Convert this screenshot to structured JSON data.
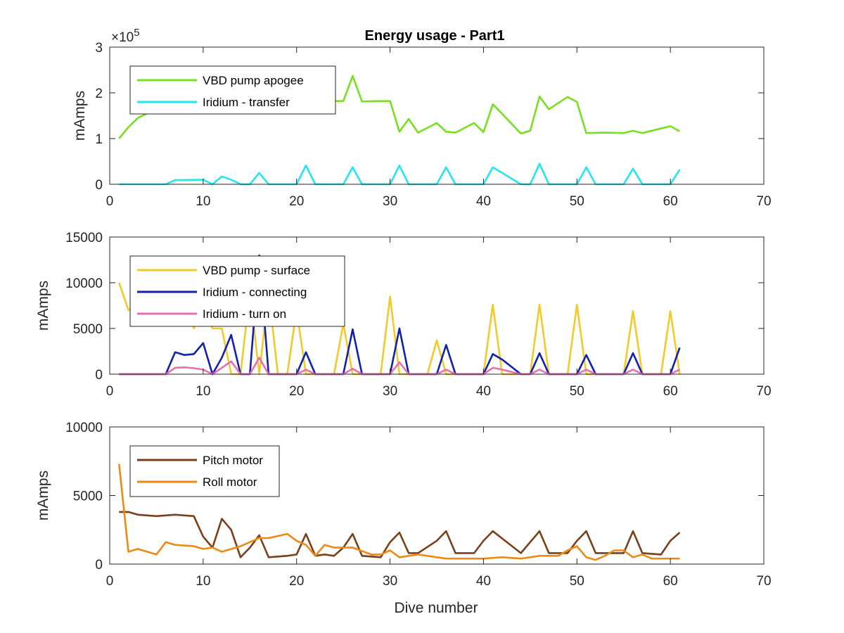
{
  "figure": {
    "title": "Energy usage - Part1",
    "xlabel": "Dive number"
  },
  "chart_data": [
    {
      "type": "line",
      "ylabel": "mAmps",
      "xlim": [
        0,
        70
      ],
      "ylim": [
        0,
        300000
      ],
      "xticks": [
        "0",
        "10",
        "20",
        "30",
        "40",
        "50",
        "60",
        "70"
      ],
      "yticks": [
        "0",
        "1",
        "2",
        "3"
      ],
      "ytick_values": [
        0,
        100000,
        200000,
        300000
      ],
      "exponent_label": "×10",
      "exponent_power": "5",
      "legend_position": "top-left",
      "series": [
        {
          "name": "VBD pump apogee",
          "color": "#77e020",
          "x": [
            1,
            2,
            3,
            5,
            7,
            9,
            11,
            13,
            15,
            17,
            19,
            21,
            23,
            25,
            26,
            27,
            29,
            30,
            31,
            32,
            33,
            35,
            36,
            37,
            39,
            40,
            41,
            42,
            44,
            45,
            46,
            47,
            49,
            50,
            51,
            53,
            55,
            56,
            57,
            59,
            60,
            61
          ],
          "y": [
            100000,
            125000,
            145000,
            165000,
            175000,
            180000,
            180000,
            182000,
            184000,
            183000,
            182000,
            183000,
            182000,
            182000,
            237000,
            181000,
            182000,
            182000,
            115000,
            143000,
            113000,
            134000,
            115000,
            113000,
            134000,
            114000,
            175000,
            154000,
            111000,
            117000,
            192000,
            164000,
            191000,
            180000,
            112000,
            113000,
            112000,
            117000,
            112000,
            122000,
            127000,
            116000
          ]
        },
        {
          "name": "Iridium - transfer",
          "color": "#22e6f0",
          "x": [
            1,
            6,
            7,
            10,
            11,
            12,
            13,
            14,
            15,
            16,
            17,
            20,
            21,
            22,
            25,
            26,
            27,
            30,
            31,
            32,
            35,
            36,
            37,
            40,
            41,
            42,
            44,
            45,
            46,
            47,
            50,
            51,
            52,
            55,
            56,
            57,
            60,
            61
          ],
          "y": [
            0,
            0,
            9000,
            10000,
            0,
            17000,
            10000,
            0,
            0,
            25000,
            0,
            0,
            41000,
            0,
            0,
            37000,
            0,
            0,
            41000,
            0,
            0,
            37000,
            0,
            0,
            37000,
            25000,
            0,
            0,
            45000,
            0,
            0,
            37000,
            0,
            0,
            34000,
            0,
            0,
            32000
          ]
        }
      ]
    },
    {
      "type": "line",
      "ylabel": "mAmps",
      "xlim": [
        0,
        70
      ],
      "ylim": [
        0,
        15000
      ],
      "xticks": [
        "0",
        "10",
        "20",
        "30",
        "40",
        "50",
        "60",
        "70"
      ],
      "yticks": [
        "0",
        "5000",
        "10000",
        "15000"
      ],
      "ytick_values": [
        0,
        5000,
        10000,
        15000
      ],
      "legend_position": "top-left",
      "series": [
        {
          "name": "VBD pump - surface",
          "color": "#f3ca2a",
          "x": [
            1,
            2,
            3,
            4,
            5,
            6,
            7,
            8,
            9,
            10,
            11,
            12,
            13,
            14,
            15,
            16,
            17,
            18,
            19,
            20,
            21,
            22,
            23,
            24,
            25,
            26,
            27,
            28,
            29,
            30,
            31,
            32,
            33,
            34,
            35,
            36,
            37,
            38,
            39,
            40,
            41,
            42,
            43,
            44,
            45,
            46,
            47,
            48,
            49,
            50,
            51,
            52,
            53,
            54,
            55,
            56,
            57,
            58,
            59,
            60,
            61
          ],
          "y": [
            10000,
            7000,
            7500,
            9000,
            8500,
            9000,
            9500,
            9000,
            5000,
            8000,
            5000,
            5000,
            0,
            0,
            9000,
            0,
            9000,
            0,
            0,
            7000,
            0,
            0,
            0,
            0,
            5500,
            0,
            0,
            0,
            0,
            8500,
            0,
            0,
            0,
            0,
            3700,
            0,
            0,
            0,
            0,
            0,
            7600,
            0,
            0,
            0,
            0,
            7600,
            0,
            0,
            0,
            7600,
            0,
            0,
            0,
            0,
            0,
            6900,
            0,
            0,
            0,
            6900,
            0
          ]
        },
        {
          "name": "Iridium - connecting",
          "color": "#1020b0",
          "x": [
            1,
            6,
            7,
            8,
            9,
            10,
            11,
            12,
            13,
            14,
            15,
            16,
            17,
            20,
            21,
            22,
            25,
            26,
            27,
            30,
            31,
            32,
            35,
            36,
            37,
            40,
            41,
            42,
            44,
            45,
            46,
            47,
            50,
            51,
            52,
            55,
            56,
            57,
            60,
            61
          ],
          "y": [
            0,
            0,
            2400,
            2100,
            2200,
            3400,
            0,
            1800,
            4300,
            0,
            0,
            13000,
            0,
            0,
            2400,
            0,
            0,
            4900,
            0,
            0,
            5000,
            0,
            0,
            3200,
            0,
            0,
            2200,
            1600,
            0,
            0,
            2300,
            0,
            0,
            2100,
            0,
            0,
            2300,
            0,
            0,
            2900
          ]
        },
        {
          "name": "Iridium - turn on",
          "color": "#e86fb0",
          "x": [
            1,
            6,
            7,
            8,
            9,
            10,
            11,
            12,
            13,
            14,
            15,
            16,
            17,
            20,
            21,
            22,
            25,
            26,
            27,
            30,
            31,
            32,
            35,
            36,
            37,
            40,
            41,
            42,
            44,
            45,
            46,
            47,
            50,
            51,
            52,
            55,
            56,
            57,
            60,
            61
          ],
          "y": [
            0,
            0,
            700,
            750,
            650,
            500,
            0,
            700,
            1400,
            0,
            0,
            1800,
            0,
            0,
            500,
            0,
            0,
            600,
            0,
            0,
            1300,
            0,
            0,
            500,
            0,
            0,
            700,
            500,
            0,
            0,
            500,
            0,
            0,
            500,
            0,
            0,
            500,
            0,
            0,
            500
          ]
        }
      ]
    },
    {
      "type": "line",
      "ylabel": "mAmps",
      "xlim": [
        0,
        70
      ],
      "ylim": [
        0,
        10000
      ],
      "xticks": [
        "0",
        "10",
        "20",
        "30",
        "40",
        "50",
        "60",
        "70"
      ],
      "yticks": [
        "0",
        "5000",
        "10000"
      ],
      "ytick_values": [
        0,
        5000,
        10000
      ],
      "legend_position": "top-left",
      "series": [
        {
          "name": "Pitch motor",
          "color": "#7a4019",
          "x": [
            1,
            2,
            3,
            5,
            7,
            9,
            10,
            11,
            12,
            13,
            14,
            15,
            16,
            17,
            19,
            20,
            21,
            22,
            23,
            24,
            25,
            26,
            27,
            29,
            30,
            31,
            32,
            33,
            35,
            36,
            37,
            39,
            40,
            41,
            44,
            46,
            47,
            49,
            50,
            51,
            52,
            55,
            56,
            57,
            59,
            60,
            61
          ],
          "y": [
            3800,
            3800,
            3600,
            3500,
            3600,
            3500,
            2000,
            1200,
            3300,
            2500,
            500,
            1200,
            2100,
            500,
            600,
            700,
            2200,
            600,
            700,
            600,
            1200,
            2200,
            600,
            500,
            1600,
            2300,
            800,
            800,
            1700,
            2400,
            800,
            800,
            1700,
            2400,
            800,
            2400,
            800,
            800,
            1700,
            2400,
            800,
            800,
            2400,
            800,
            700,
            1700,
            2300
          ]
        },
        {
          "name": "Roll motor",
          "color": "#ee8a14",
          "x": [
            1,
            2,
            3,
            5,
            6,
            7,
            9,
            10,
            11,
            12,
            14,
            15,
            16,
            17,
            19,
            20,
            21,
            22,
            23,
            24,
            26,
            28,
            29,
            30,
            31,
            33,
            34,
            35,
            36,
            38,
            40,
            42,
            44,
            46,
            48,
            49,
            50,
            51,
            52,
            53,
            54,
            55,
            56,
            57,
            58,
            60,
            61
          ],
          "y": [
            7300,
            900,
            1100,
            700,
            1600,
            1400,
            1300,
            1100,
            1200,
            900,
            1300,
            1600,
            1900,
            1900,
            2200,
            1700,
            1400,
            600,
            1400,
            1200,
            1200,
            700,
            700,
            1000,
            500,
            700,
            600,
            500,
            400,
            400,
            400,
            500,
            400,
            600,
            600,
            1000,
            1300,
            500,
            300,
            600,
            1000,
            1000,
            500,
            700,
            400,
            400,
            400
          ]
        }
      ]
    }
  ]
}
